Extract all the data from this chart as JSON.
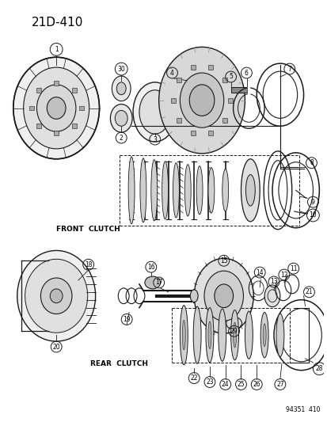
{
  "title": "21D-410",
  "watermark": "94351  410",
  "bg_color": "#ffffff",
  "fig_width": 4.14,
  "fig_height": 5.33,
  "dpi": 100,
  "front_clutch_label": "FRONT  CLUTCH",
  "rear_clutch_label": "REAR  CLUTCH",
  "line_color": "#1a1a1a",
  "text_color": "#000000",
  "title_fontsize": 10,
  "label_fontsize": 6.5,
  "number_fontsize": 5.5
}
